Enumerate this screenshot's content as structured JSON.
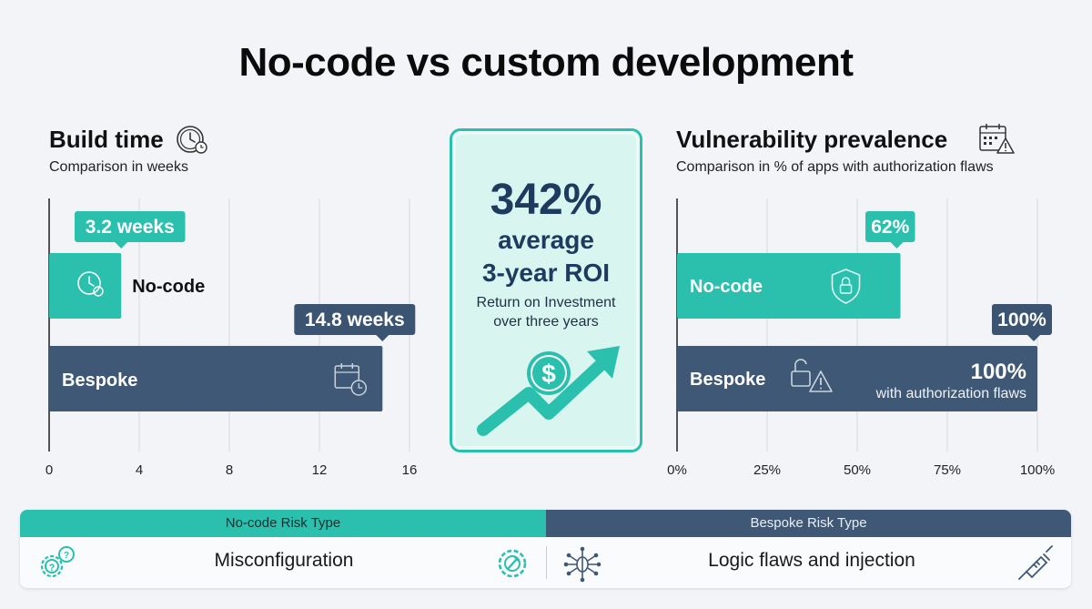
{
  "title": "No-code vs custom development",
  "colors": {
    "teal": "#2bbfae",
    "navy": "#3f5876",
    "navy_label": "#3b5472",
    "roi_text": "#1f3a5f"
  },
  "build_time": {
    "title": "Build time",
    "subtitle": "Comparison in weeks",
    "icon": "clock-icon",
    "chart_data": {
      "type": "bar",
      "orientation": "horizontal",
      "categories": [
        "No-code",
        "Bespoke"
      ],
      "values": [
        3.2,
        14.8
      ],
      "value_labels": [
        "3.2 weeks",
        "14.8 weeks"
      ],
      "bar_icons": [
        "clock-icon",
        "calendar-clock-icon"
      ],
      "xlim": [
        0,
        16
      ],
      "xticks": [
        "0",
        "4",
        "8",
        "12",
        "16"
      ],
      "grid": true
    }
  },
  "vulnerability": {
    "title": "Vulnerability prevalence",
    "subtitle": "Comparison in % of apps with authorization flaws",
    "icon": "calendar-warning-icon",
    "chart_data": {
      "type": "bar",
      "orientation": "horizontal",
      "categories": [
        "No-code",
        "Bespoke"
      ],
      "values": [
        62,
        100
      ],
      "value_labels": [
        "62%",
        "100%"
      ],
      "bar_icons": [
        "shield-lock-icon",
        "unlocked-warning-icon"
      ],
      "bespoke_inner_value": "100%",
      "bespoke_inner_caption": "with authorization flaws",
      "xlim": [
        0,
        100
      ],
      "xticks": [
        "0%",
        "25%",
        "50%",
        "75%",
        "100%"
      ],
      "grid": true
    }
  },
  "roi": {
    "value": "342%",
    "line1": "average",
    "line2": "3-year ROI",
    "desc1": "Return on Investment",
    "desc2": "over three years",
    "icon": "dollar-growth-arrow-icon"
  },
  "risk": {
    "left_header": "No-code Risk Type",
    "left_value": "Misconfiguration",
    "right_header": "Bespoke Risk Type",
    "right_value": "Logic flaws and injection",
    "icons": [
      "gear-question-icon",
      "gear-wrench-icon",
      "bug-network-icon",
      "syringe-icon"
    ]
  }
}
